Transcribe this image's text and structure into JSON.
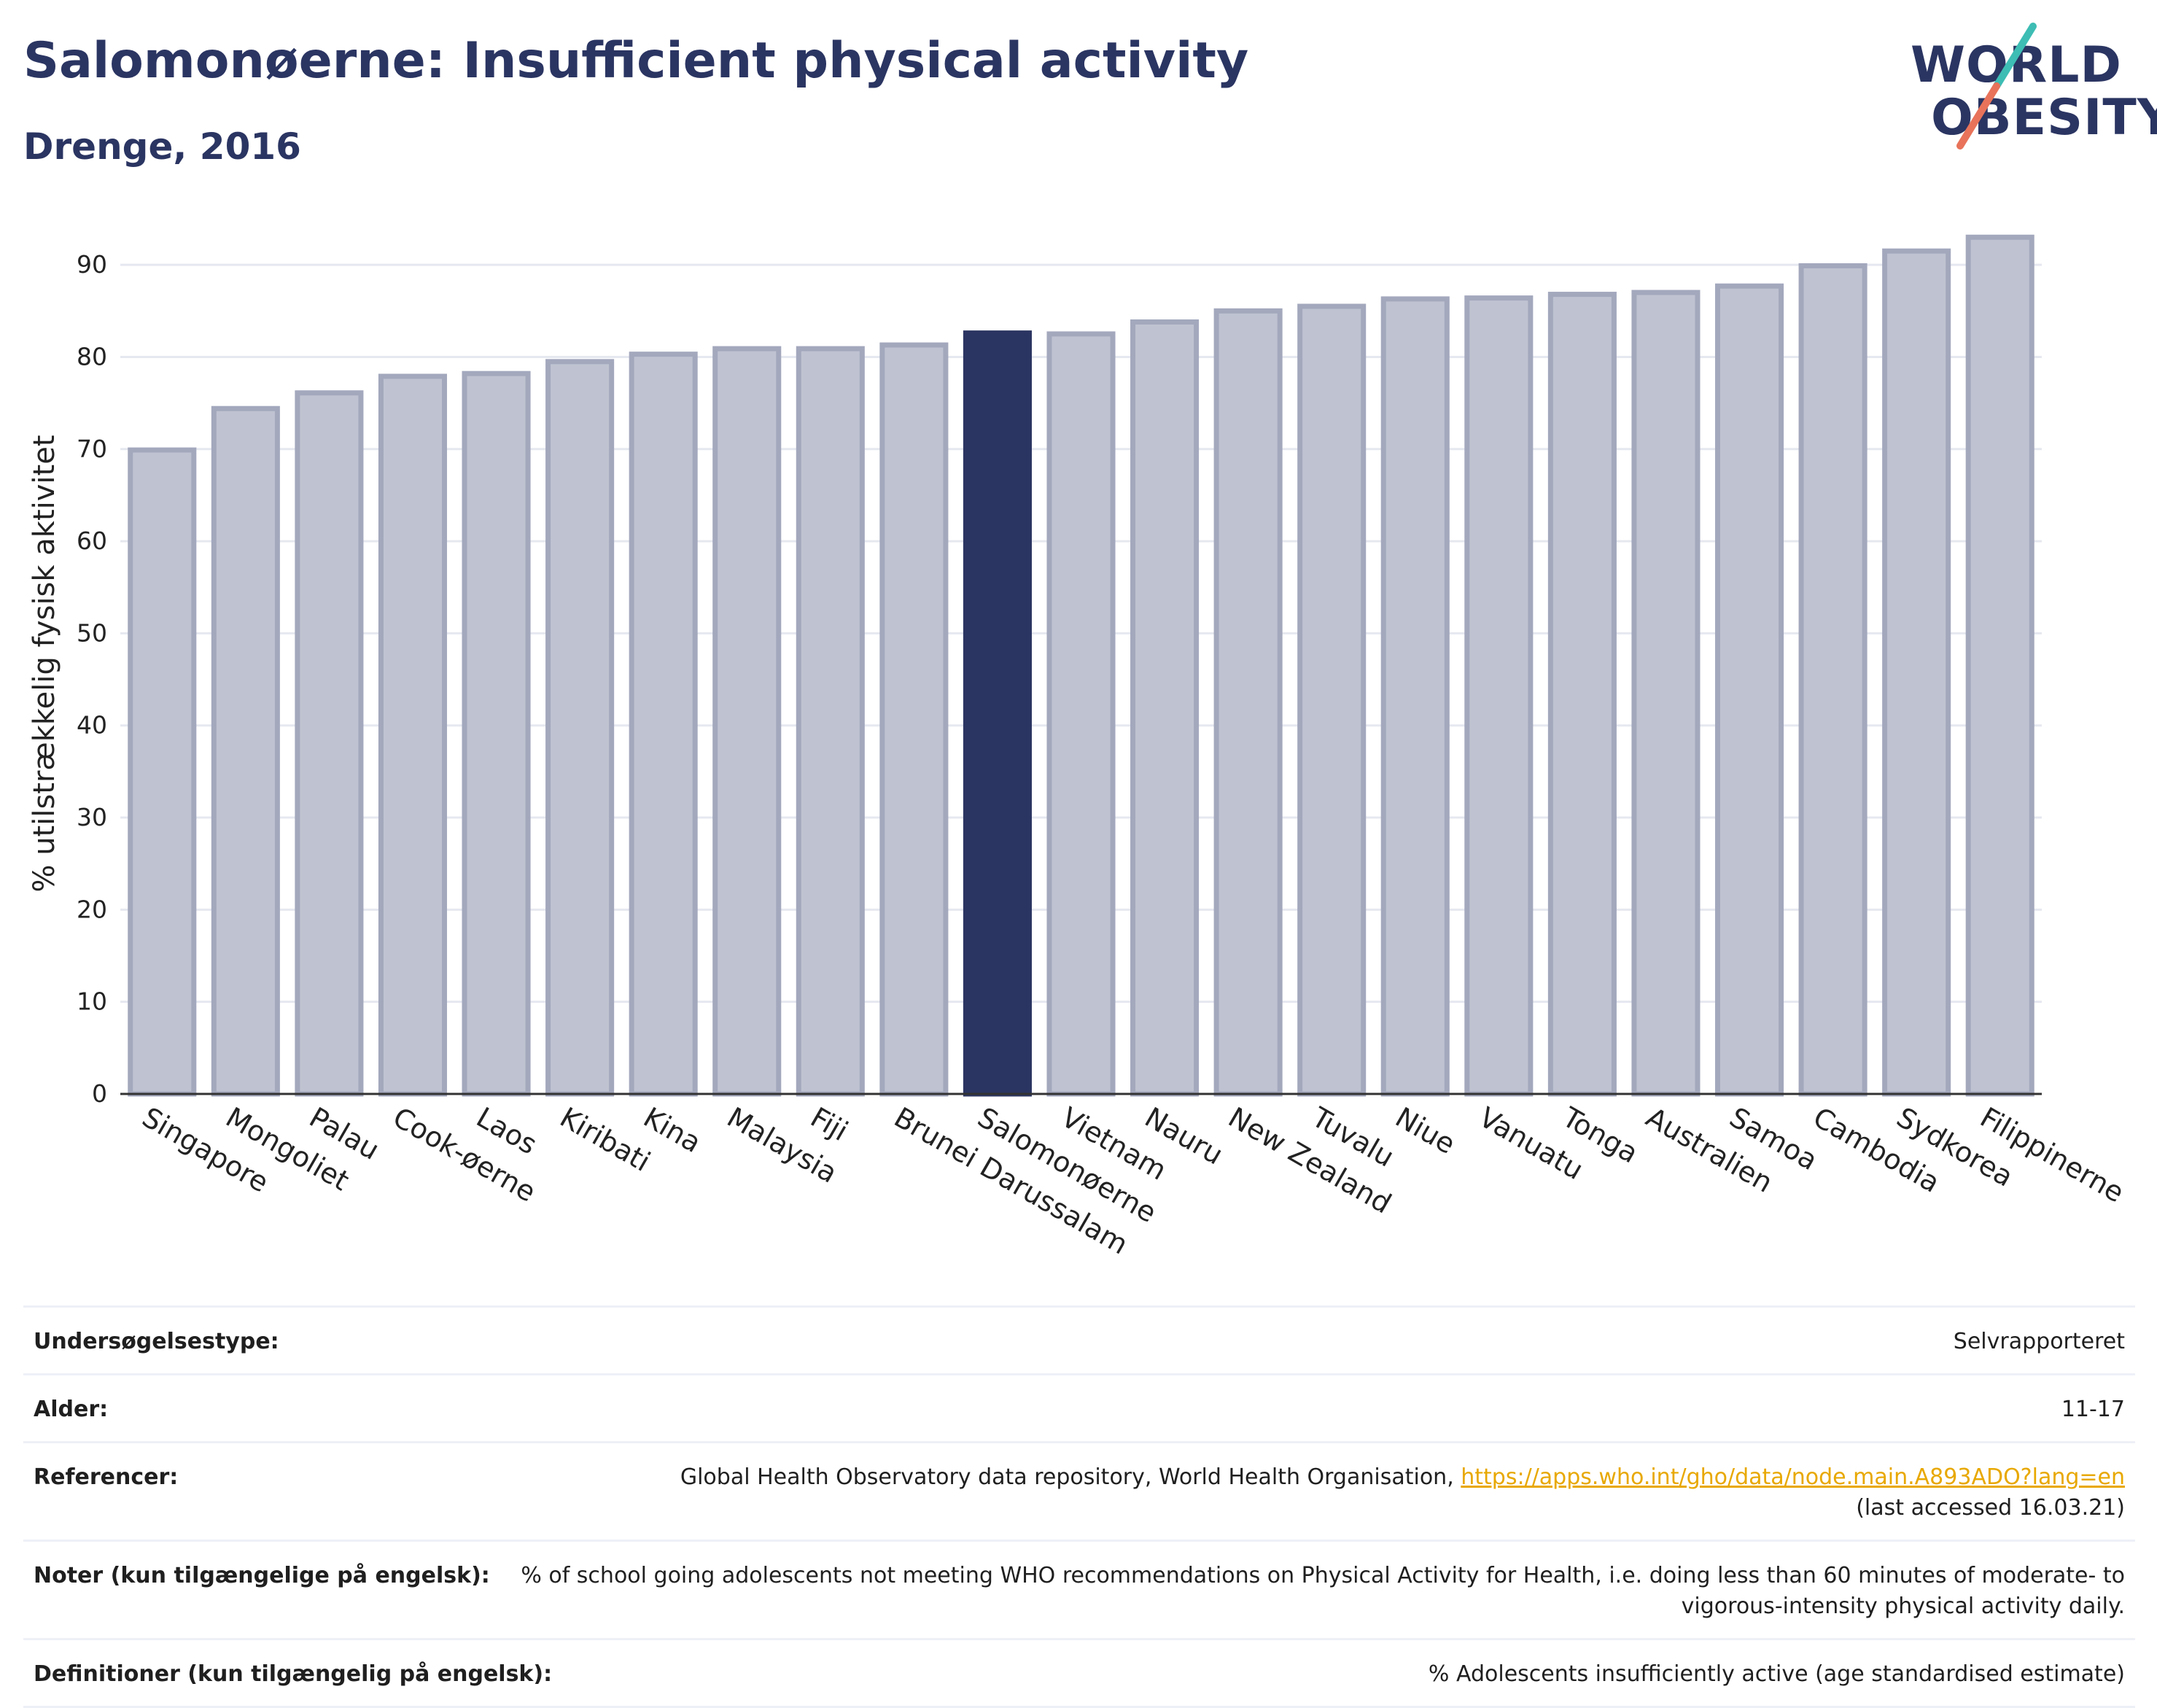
{
  "header": {
    "title": "Salomonøerne: Insufficient physical activity",
    "subtitle": "Drenge, 2016"
  },
  "logo": {
    "line1": "WORLD",
    "line2": "OBESITY",
    "colors": {
      "text": "#2b3562",
      "slash_top": "#3dbdb4",
      "slash_bottom": "#e8735a"
    }
  },
  "chart_data": {
    "type": "bar",
    "categories": [
      "Singapore",
      "Mongoliet",
      "Palau",
      "Cook-øerne",
      "Laos",
      "Kiribati",
      "Kina",
      "Malaysia",
      "Fiji",
      "Brunei Darussalam",
      "Salomonøerne",
      "Vietnam",
      "Nauru",
      "New Zealand",
      "Tuvalu",
      "Niue",
      "Vanuatu",
      "Tonga",
      "Australien",
      "Samoa",
      "Cambodia",
      "Sydkorea",
      "Filippinerne"
    ],
    "values": [
      69.9,
      74.4,
      76.1,
      77.9,
      78.2,
      79.5,
      80.3,
      80.9,
      80.9,
      81.3,
      82.6,
      82.5,
      83.8,
      85.0,
      85.5,
      86.3,
      86.4,
      86.8,
      87.0,
      87.7,
      89.9,
      91.5,
      93.0
    ],
    "highlight": "Salomonøerne",
    "ylabel": "% utilstrækkelig fysisk aktivitet",
    "yticks": [
      0,
      10,
      20,
      30,
      40,
      50,
      60,
      70,
      80,
      90
    ],
    "ylim": [
      0,
      95
    ],
    "grid": true,
    "colors": {
      "bar": "#bfc3d1",
      "bar_border": "#a3a8bd",
      "highlight": "#2b3562",
      "grid": "#e6e8f0",
      "axis": "#333333"
    }
  },
  "meta": {
    "rows": [
      {
        "label": "Undersøgelsestype:",
        "value": "Selvrapporteret"
      },
      {
        "label": "Alder:",
        "value": "11-17"
      },
      {
        "label": "Referencer:",
        "value": "Global Health Observatory data repository, World Health Organisation, ",
        "link": "https://apps.who.int/gho/data/node.main.A893ADO?lang=en",
        "value_after": "(last accessed 16.03.21)"
      },
      {
        "label": "Noter (kun tilgængelige på engelsk):",
        "value": "% of school going adolescents not meeting WHO recommendations on Physical Activity for Health, i.e. doing less than 60 minutes of moderate- to vigorous-intensity physical activity daily."
      },
      {
        "label": "Definitioner (kun tilgængelig på engelsk):",
        "value": "% Adolescents insufficiently active (age standardised estimate)"
      }
    ]
  }
}
